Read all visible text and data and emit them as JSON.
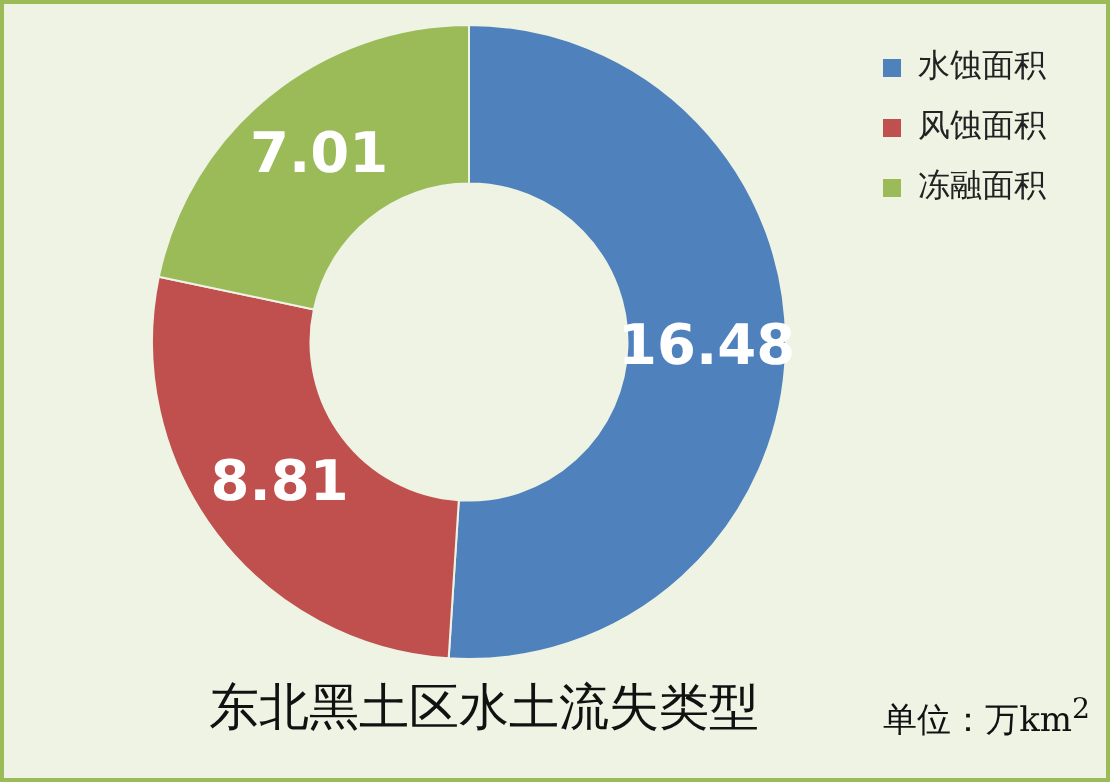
{
  "chart_data": {
    "type": "donut",
    "title": "东北黑土区水土流失类型",
    "categories": [
      "水蚀面积",
      "风蚀面积",
      "冻融面积"
    ],
    "values": [
      16.48,
      8.81,
      7.01
    ],
    "colors": [
      "#4f81bd",
      "#c0504d",
      "#9bbb59"
    ],
    "data_labels": true,
    "legend": "top right",
    "annotations": [
      "单位：万km$^{2}$"
    ]
  }
}
